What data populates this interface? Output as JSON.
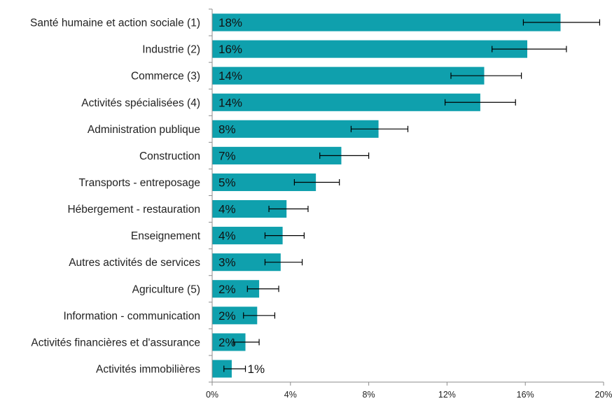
{
  "chart_data": {
    "type": "bar",
    "orientation": "horizontal",
    "title": "",
    "xlabel": "",
    "ylabel": "",
    "xlim": [
      0,
      20
    ],
    "xticks": [
      0,
      4,
      8,
      12,
      16,
      20
    ],
    "xtick_labels": [
      "0%",
      "4%",
      "8%",
      "12%",
      "16%",
      "20%"
    ],
    "grid": false,
    "error_bars": true,
    "bar_color": "#0fa0ad",
    "categories": [
      "Santé humaine et action sociale (1)",
      "Industrie (2)",
      "Commerce (3)",
      "Activités spécialisées (4)",
      "Administration publique",
      "Construction",
      "Transports - entreposage",
      "Hébergement - restauration",
      "Enseignement",
      "Autres activités de services",
      "Agriculture (5)",
      "Information - communication",
      "Activités financières et d'assurance",
      "Activités immobilières"
    ],
    "values": [
      17.8,
      16.1,
      13.9,
      13.7,
      8.5,
      6.6,
      5.3,
      3.8,
      3.6,
      3.5,
      2.4,
      2.3,
      1.7,
      1.0
    ],
    "error_low": [
      15.9,
      14.3,
      12.2,
      11.9,
      7.1,
      5.5,
      4.2,
      2.9,
      2.7,
      2.7,
      1.8,
      1.6,
      1.1,
      0.6
    ],
    "error_high": [
      19.8,
      18.1,
      15.8,
      15.5,
      10.0,
      8.0,
      6.5,
      4.9,
      4.7,
      4.6,
      3.4,
      3.2,
      2.4,
      1.7
    ],
    "value_labels": [
      "18%",
      "16%",
      "14%",
      "14%",
      "8%",
      "7%",
      "5%",
      "4%",
      "4%",
      "3%",
      "2%",
      "2%",
      "2%",
      "1%"
    ]
  }
}
